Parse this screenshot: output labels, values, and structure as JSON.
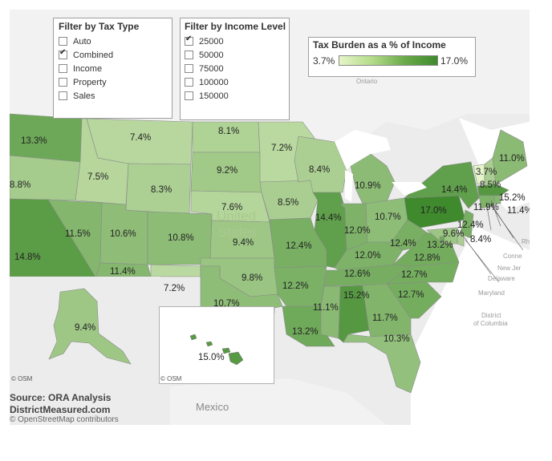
{
  "tax_filter": {
    "title": "Filter by Tax Type",
    "options": [
      {
        "label": "Auto",
        "checked": false
      },
      {
        "label": "Combined",
        "checked": true
      },
      {
        "label": "Income",
        "checked": false
      },
      {
        "label": "Property",
        "checked": false
      },
      {
        "label": "Sales",
        "checked": false
      }
    ]
  },
  "income_filter": {
    "title": "Filter by Income Level",
    "options": [
      {
        "label": "25000",
        "checked": true
      },
      {
        "label": "50000",
        "checked": false
      },
      {
        "label": "75000",
        "checked": false
      },
      {
        "label": "100000",
        "checked": false
      },
      {
        "label": "150000",
        "checked": false
      }
    ]
  },
  "legend": {
    "title": "Tax Burden as a % of Income",
    "min_label": "3.7%",
    "max_label": "17.0%",
    "min_value": 3.7,
    "max_value": 17.0,
    "min_color": "#e6f5c9",
    "max_color": "#3f8a2d"
  },
  "map": {
    "center_label_line1": "United",
    "center_label_line2": "States",
    "geo_labels": {
      "ontario": "Ontario",
      "mexico": "Mexico",
      "delaware": "Delaware",
      "maryland": "Maryland",
      "dc_line1": "District",
      "dc_line2": "of Columbia",
      "new_jersey": "New Jer",
      "connecticut": "Conne",
      "rhode": "Rh"
    },
    "states": [
      {
        "abbr": "WA",
        "value": 13.3,
        "label": "13.3%"
      },
      {
        "abbr": "OR",
        "value": 8.8,
        "label": "8.8%"
      },
      {
        "abbr": "CA",
        "value": 14.8,
        "label": "14.8%"
      },
      {
        "abbr": "ID",
        "value": 7.5,
        "label": "7.5%"
      },
      {
        "abbr": "NV",
        "value": 11.5,
        "label": "11.5%"
      },
      {
        "abbr": "MT",
        "value": 7.4,
        "label": "7.4%"
      },
      {
        "abbr": "WY",
        "value": 8.3,
        "label": "8.3%"
      },
      {
        "abbr": "UT",
        "value": 10.6,
        "label": "10.6%"
      },
      {
        "abbr": "AZ",
        "value": 11.4,
        "label": "11.4%"
      },
      {
        "abbr": "CO",
        "value": 10.8,
        "label": "10.8%"
      },
      {
        "abbr": "NM",
        "value": 7.2,
        "label": "7.2%"
      },
      {
        "abbr": "ND",
        "value": 8.1,
        "label": "8.1%"
      },
      {
        "abbr": "SD",
        "value": 9.2,
        "label": "9.2%"
      },
      {
        "abbr": "NE",
        "value": 7.6,
        "label": "7.6%"
      },
      {
        "abbr": "KS",
        "value": 9.4,
        "label": "9.4%"
      },
      {
        "abbr": "OK",
        "value": 9.8,
        "label": "9.8%"
      },
      {
        "abbr": "TX",
        "value": 10.7,
        "label": "10.7%"
      },
      {
        "abbr": "MN",
        "value": 7.2,
        "label": "7.2%"
      },
      {
        "abbr": "IA",
        "value": 8.5,
        "label": "8.5%"
      },
      {
        "abbr": "MO",
        "value": 12.4,
        "label": "12.4%"
      },
      {
        "abbr": "AR",
        "value": 12.2,
        "label": "12.2%"
      },
      {
        "abbr": "LA",
        "value": 13.2,
        "label": "13.2%"
      },
      {
        "abbr": "WI",
        "value": 8.4,
        "label": "8.4%"
      },
      {
        "abbr": "IL",
        "value": 14.4,
        "label": "14.4%"
      },
      {
        "abbr": "MI",
        "value": 10.9,
        "label": "10.9%"
      },
      {
        "abbr": "IN",
        "value": 12.0,
        "label": "12.0%"
      },
      {
        "abbr": "OH",
        "value": 10.7,
        "label": "10.7%"
      },
      {
        "abbr": "KY",
        "value": 12.0,
        "label": "12.0%"
      },
      {
        "abbr": "TN",
        "value": 12.6,
        "label": "12.6%"
      },
      {
        "abbr": "MS",
        "value": 11.1,
        "label": "11.1%"
      },
      {
        "abbr": "AL",
        "value": 15.2,
        "label": "15.2%"
      },
      {
        "abbr": "GA",
        "value": 11.7,
        "label": "11.7%"
      },
      {
        "abbr": "FL",
        "value": 10.3,
        "label": "10.3%"
      },
      {
        "abbr": "SC",
        "value": 12.7,
        "label": "12.7%"
      },
      {
        "abbr": "NC",
        "value": 12.7,
        "label": "12.7%"
      },
      {
        "abbr": "VA",
        "value": 12.8,
        "label": "12.8%"
      },
      {
        "abbr": "WV",
        "value": 12.4,
        "label": "12.4%"
      },
      {
        "abbr": "PA",
        "value": 17.0,
        "label": "17.0%"
      },
      {
        "abbr": "NY",
        "value": 14.4,
        "label": "14.4%"
      },
      {
        "abbr": "VT",
        "value": 3.7,
        "label": "3.7%"
      },
      {
        "abbr": "NH",
        "value": 8.5,
        "label": "8.5%"
      },
      {
        "abbr": "ME",
        "value": 11.0,
        "label": "11.0%"
      },
      {
        "abbr": "MA",
        "value": 15.2,
        "label": "15.2%"
      },
      {
        "abbr": "RI",
        "value": 11.4,
        "label": "11.4%"
      },
      {
        "abbr": "CT",
        "value": 11.9,
        "label": "11.9%"
      },
      {
        "abbr": "NJ",
        "value": 12.4,
        "label": "12.4%"
      },
      {
        "abbr": "DE",
        "value": 8.4,
        "label": "8.4%"
      },
      {
        "abbr": "MD",
        "value": 9.6,
        "label": "9.6%"
      },
      {
        "abbr": "DC",
        "value": 13.2,
        "label": "13.2%"
      },
      {
        "abbr": "AK",
        "value": 9.4,
        "label": "9.4%"
      },
      {
        "abbr": "HI",
        "value": 15.0,
        "label": "15.0%"
      }
    ]
  },
  "inset_alaska": {
    "credit": "© OSM"
  },
  "inset_hawaii": {
    "credit": "© OSM"
  },
  "source": {
    "line1": "Source: ORA Analysis",
    "line2": "DistrictMeasured.com",
    "contributors": "© OpenStreetMap contributors"
  }
}
